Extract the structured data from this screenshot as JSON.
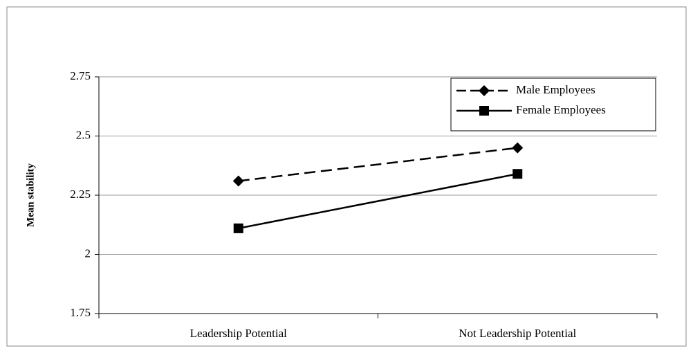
{
  "chart_data": {
    "type": "line",
    "ylabel": "Mean stability",
    "categories": [
      "Leadership Potential",
      "Not Leadership Potential"
    ],
    "series": [
      {
        "name": "Male Employees",
        "color": "#000000",
        "line_style": "dashed",
        "marker": "diamond",
        "values": [
          2.31,
          2.45
        ]
      },
      {
        "name": "Female Employees",
        "color": "#000000",
        "line_style": "solid",
        "marker": "square",
        "values": [
          2.11,
          2.34
        ]
      }
    ],
    "ylim": [
      1.75,
      2.75
    ],
    "yticks": [
      1.75,
      2,
      2.25,
      2.5,
      2.75
    ],
    "grid": true,
    "legend": "upper right"
  }
}
